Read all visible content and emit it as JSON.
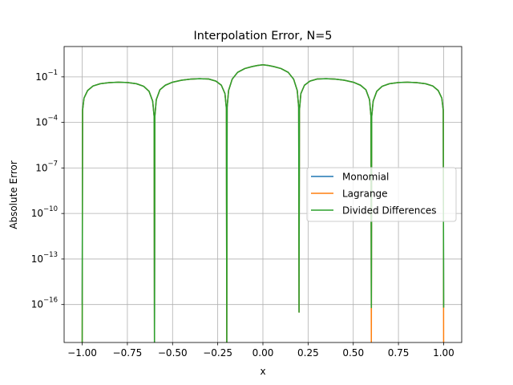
{
  "chart_data": {
    "type": "line",
    "title": "Interpolation Error, N=5",
    "xlabel": "x",
    "ylabel": "Absolute Error",
    "yscale": "log",
    "xlim": [
      -1.1,
      1.1
    ],
    "ylim_exponent": [
      -18.5,
      1.0
    ],
    "grid": true,
    "legend_placement": "center-right",
    "x_ticks": [
      {
        "value": -1.0,
        "label": "−1.00"
      },
      {
        "value": -0.75,
        "label": "−0.75"
      },
      {
        "value": -0.5,
        "label": "−0.50"
      },
      {
        "value": -0.25,
        "label": "−0.25"
      },
      {
        "value": 0.0,
        "label": "0.00"
      },
      {
        "value": 0.25,
        "label": "0.25"
      },
      {
        "value": 0.5,
        "label": "0.50"
      },
      {
        "value": 0.75,
        "label": "0.75"
      },
      {
        "value": 1.0,
        "label": "1.00"
      }
    ],
    "y_ticks": [
      {
        "exp": -1,
        "base": "10",
        "sup": "−1"
      },
      {
        "exp": -4,
        "base": "10",
        "sup": "−4"
      },
      {
        "exp": -7,
        "base": "10",
        "sup": "−7"
      },
      {
        "exp": -10,
        "base": "10",
        "sup": "−10"
      },
      {
        "exp": -13,
        "base": "10",
        "sup": "−13"
      },
      {
        "exp": -16,
        "base": "10",
        "sup": "−16"
      }
    ],
    "series": [
      {
        "name": "Monomial",
        "color": "#1f77b4",
        "x": [
          -1.0,
          -0.998,
          -0.99,
          -0.97,
          -0.94,
          -0.9,
          -0.85,
          -0.8,
          -0.75,
          -0.7,
          -0.66,
          -0.63,
          -0.61,
          -0.602,
          -0.6,
          -0.598,
          -0.59,
          -0.57,
          -0.54,
          -0.5,
          -0.45,
          -0.4,
          -0.35,
          -0.3,
          -0.26,
          -0.23,
          -0.21,
          -0.202,
          -0.2,
          -0.198,
          -0.19,
          -0.17,
          -0.14,
          -0.1,
          -0.06,
          -0.03,
          0.0,
          0.03,
          0.06,
          0.1,
          0.14,
          0.17,
          0.19,
          0.198,
          0.2,
          0.202,
          0.21,
          0.23,
          0.26,
          0.3,
          0.35,
          0.4,
          0.45,
          0.5,
          0.54,
          0.57,
          0.59,
          0.598,
          0.6,
          0.602,
          0.61,
          0.63,
          0.66,
          0.7,
          0.75,
          0.8,
          0.85,
          0.9,
          0.94,
          0.97,
          0.99,
          0.998,
          1.0
        ],
        "log10_error": [
          -16.0,
          -3.2,
          -2.4,
          -1.9,
          -1.6,
          -1.45,
          -1.38,
          -1.35,
          -1.37,
          -1.45,
          -1.62,
          -1.95,
          -2.6,
          -3.6,
          -18.5,
          -3.6,
          -2.5,
          -1.85,
          -1.55,
          -1.35,
          -1.22,
          -1.15,
          -1.12,
          -1.14,
          -1.28,
          -1.55,
          -2.1,
          -3.1,
          -18.5,
          -3.0,
          -1.9,
          -1.15,
          -0.7,
          -0.45,
          -0.32,
          -0.25,
          -0.2,
          -0.25,
          -0.32,
          -0.45,
          -0.7,
          -1.15,
          -1.9,
          -3.0,
          -16.5,
          -3.2,
          -2.1,
          -1.55,
          -1.28,
          -1.14,
          -1.12,
          -1.15,
          -1.22,
          -1.35,
          -1.55,
          -1.85,
          -2.5,
          -3.6,
          -16.2,
          -3.6,
          -2.6,
          -1.95,
          -1.62,
          -1.45,
          -1.37,
          -1.35,
          -1.38,
          -1.45,
          -1.6,
          -1.9,
          -2.4,
          -3.2,
          -16.2
        ]
      },
      {
        "name": "Lagrange",
        "color": "#ff7f0e",
        "x": [
          -1.0,
          -0.998,
          -0.99,
          -0.97,
          -0.94,
          -0.9,
          -0.85,
          -0.8,
          -0.75,
          -0.7,
          -0.66,
          -0.63,
          -0.61,
          -0.602,
          -0.6,
          -0.598,
          -0.59,
          -0.57,
          -0.54,
          -0.5,
          -0.45,
          -0.4,
          -0.35,
          -0.3,
          -0.26,
          -0.23,
          -0.21,
          -0.202,
          -0.2,
          -0.198,
          -0.19,
          -0.17,
          -0.14,
          -0.1,
          -0.06,
          -0.03,
          0.0,
          0.03,
          0.06,
          0.1,
          0.14,
          0.17,
          0.19,
          0.198,
          0.2,
          0.202,
          0.21,
          0.23,
          0.26,
          0.3,
          0.35,
          0.4,
          0.45,
          0.5,
          0.54,
          0.57,
          0.59,
          0.598,
          0.6,
          0.602,
          0.61,
          0.63,
          0.66,
          0.7,
          0.75,
          0.8,
          0.85,
          0.9,
          0.94,
          0.97,
          0.99,
          0.998,
          1.0
        ],
        "log10_error": [
          -18.5,
          -3.2,
          -2.4,
          -1.9,
          -1.6,
          -1.45,
          -1.38,
          -1.35,
          -1.37,
          -1.45,
          -1.62,
          -1.95,
          -2.6,
          -3.6,
          -18.5,
          -3.6,
          -2.5,
          -1.85,
          -1.55,
          -1.35,
          -1.22,
          -1.15,
          -1.12,
          -1.14,
          -1.28,
          -1.55,
          -2.1,
          -3.1,
          -18.5,
          -3.0,
          -1.9,
          -1.15,
          -0.7,
          -0.45,
          -0.32,
          -0.25,
          -0.2,
          -0.25,
          -0.32,
          -0.45,
          -0.7,
          -1.15,
          -1.9,
          -3.0,
          -16.5,
          -3.2,
          -2.1,
          -1.55,
          -1.28,
          -1.14,
          -1.12,
          -1.15,
          -1.22,
          -1.35,
          -1.55,
          -1.85,
          -2.5,
          -3.6,
          -18.5,
          -3.6,
          -2.6,
          -1.95,
          -1.62,
          -1.45,
          -1.37,
          -1.35,
          -1.38,
          -1.45,
          -1.6,
          -1.9,
          -2.4,
          -3.2,
          -18.5
        ]
      },
      {
        "name": "Divided Differences",
        "color": "#2ca02c",
        "x": [
          -1.0,
          -0.998,
          -0.99,
          -0.97,
          -0.94,
          -0.9,
          -0.85,
          -0.8,
          -0.75,
          -0.7,
          -0.66,
          -0.63,
          -0.61,
          -0.602,
          -0.6,
          -0.598,
          -0.59,
          -0.57,
          -0.54,
          -0.5,
          -0.45,
          -0.4,
          -0.35,
          -0.3,
          -0.26,
          -0.23,
          -0.21,
          -0.202,
          -0.2,
          -0.198,
          -0.19,
          -0.17,
          -0.14,
          -0.1,
          -0.06,
          -0.03,
          0.0,
          0.03,
          0.06,
          0.1,
          0.14,
          0.17,
          0.19,
          0.198,
          0.2,
          0.202,
          0.21,
          0.23,
          0.26,
          0.3,
          0.35,
          0.4,
          0.45,
          0.5,
          0.54,
          0.57,
          0.59,
          0.598,
          0.6,
          0.602,
          0.61,
          0.63,
          0.66,
          0.7,
          0.75,
          0.8,
          0.85,
          0.9,
          0.94,
          0.97,
          0.99,
          0.998,
          1.0
        ],
        "log10_error": [
          -18.5,
          -3.2,
          -2.4,
          -1.9,
          -1.6,
          -1.45,
          -1.38,
          -1.35,
          -1.37,
          -1.45,
          -1.62,
          -1.95,
          -2.6,
          -3.6,
          -18.5,
          -3.6,
          -2.5,
          -1.85,
          -1.55,
          -1.35,
          -1.22,
          -1.15,
          -1.12,
          -1.14,
          -1.28,
          -1.55,
          -2.1,
          -3.1,
          -18.5,
          -3.0,
          -1.9,
          -1.15,
          -0.7,
          -0.45,
          -0.32,
          -0.25,
          -0.2,
          -0.25,
          -0.32,
          -0.45,
          -0.7,
          -1.15,
          -1.9,
          -3.0,
          -16.5,
          -3.2,
          -2.1,
          -1.55,
          -1.28,
          -1.14,
          -1.12,
          -1.15,
          -1.22,
          -1.35,
          -1.55,
          -1.85,
          -2.5,
          -3.6,
          -16.2,
          -3.6,
          -2.6,
          -1.95,
          -1.62,
          -1.45,
          -1.37,
          -1.35,
          -1.38,
          -1.45,
          -1.6,
          -1.9,
          -2.4,
          -3.2,
          -16.2
        ]
      }
    ]
  }
}
